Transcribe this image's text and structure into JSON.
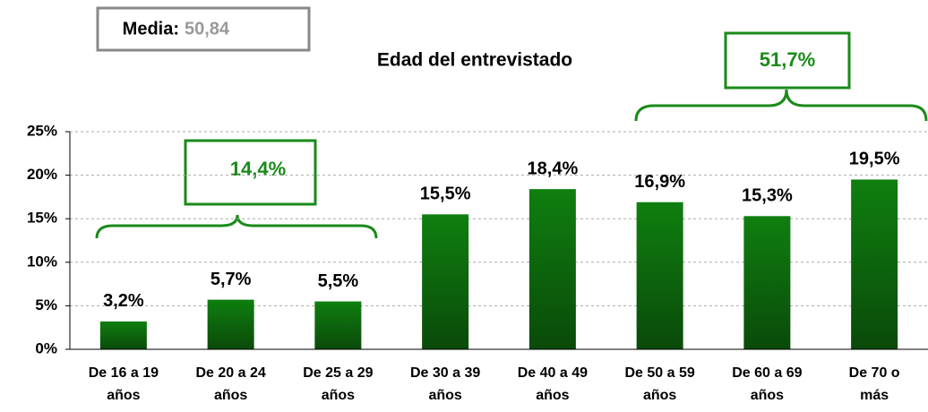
{
  "chart_data": {
    "type": "bar",
    "title": "Edad del entrevistado",
    "categories": [
      "De 16 a 19\naños",
      "De 20 a 24\naños",
      "De 25 a 29\naños",
      "De 30 a 39\naños",
      "De 40 a 49\naños",
      "De 50 a 59\naños",
      "De 60 a 69\naños",
      "De 70 o\nmás"
    ],
    "values": [
      3.2,
      5.7,
      5.5,
      15.5,
      18.4,
      16.9,
      15.3,
      19.5
    ],
    "value_labels": [
      "3,2%",
      "5,7%",
      "5,5%",
      "15,5%",
      "18,4%",
      "16,9%",
      "15,3%",
      "19,5%"
    ],
    "color": "#0f7f0f",
    "ylim": [
      0,
      25
    ],
    "yticks": [
      {
        "value": 0,
        "label": "0%"
      },
      {
        "value": 5,
        "label": "5%"
      },
      {
        "value": 10,
        "label": "10%"
      },
      {
        "value": 15,
        "label": "15%"
      },
      {
        "value": 20,
        "label": "20%"
      },
      {
        "value": 25,
        "label": "25%"
      }
    ],
    "grid": true,
    "annotations": {
      "mean_label": "Media:",
      "mean_value": "50,84",
      "group_1": "14,4%",
      "group_2": "51,7%"
    }
  }
}
